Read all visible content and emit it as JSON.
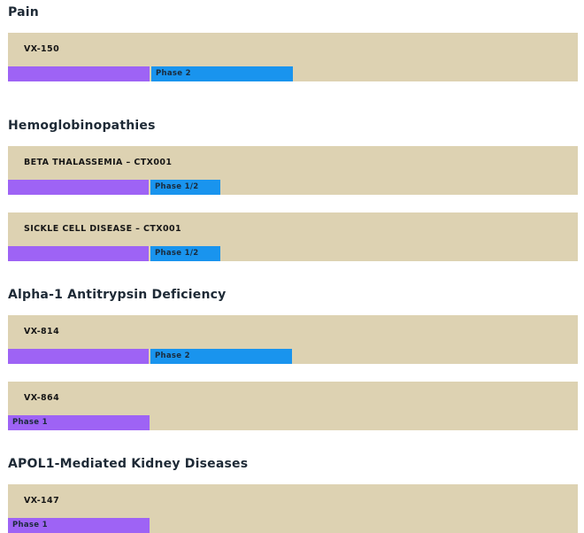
{
  "sections": [
    {
      "title": "Pain",
      "programs": [
        {
          "name": "VX-150",
          "phase": "Phase 2",
          "progress_stage": 2
        }
      ]
    },
    {
      "title": "Hemoglobinopathies",
      "programs": [
        {
          "name": "BETA THALASSEMIA – CTX001",
          "phase": "Phase 1/2",
          "progress_stage": 1.5
        },
        {
          "name": "SICKLE CELL DISEASE – CTX001",
          "phase": "Phase 1/2",
          "progress_stage": 1.5
        }
      ]
    },
    {
      "title": "Alpha-1 Antitrypsin Deficiency",
      "programs": [
        {
          "name": "VX-814",
          "phase": "Phase 2",
          "progress_stage": 2
        },
        {
          "name": "VX-864",
          "phase": "Phase 1",
          "progress_stage": 1
        }
      ]
    },
    {
      "title": "APOL1-Mediated Kidney Diseases",
      "programs": [
        {
          "name": "VX-147",
          "phase": "Phase 1",
          "progress_stage": 1
        }
      ]
    }
  ],
  "colors": {
    "card_background": "#ddd2b2",
    "phase1_bar": "#9e63f5",
    "phase2_bar": "#1994ee",
    "heading_text": "#1e2a36"
  }
}
